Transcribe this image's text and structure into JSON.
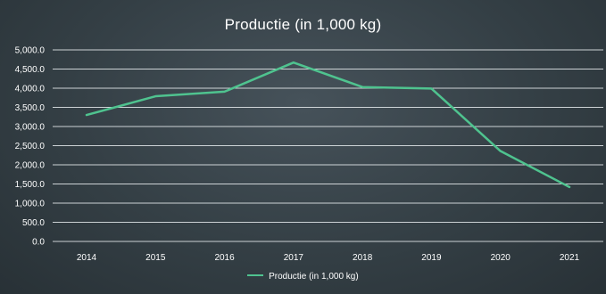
{
  "chart_data": {
    "type": "line",
    "title": "Productie (in 1,000 kg)",
    "categories": [
      "2014",
      "2015",
      "2016",
      "2017",
      "2018",
      "2019",
      "2020",
      "2021"
    ],
    "series": [
      {
        "name": "Productie (in 1,000 kg)",
        "values": [
          3300,
          3790,
          3910,
          4670,
          4030,
          3990,
          2360,
          1420
        ],
        "color": "#4fc38f"
      }
    ],
    "ylim": [
      0,
      5000
    ],
    "yticks": [
      0,
      500,
      1000,
      1500,
      2000,
      2500,
      3000,
      3500,
      4000,
      4500,
      5000
    ],
    "ytick_labels": [
      "0.0",
      "500.0",
      "1,000.0",
      "1,500.0",
      "2,000.0",
      "2,500.0",
      "3,000.0",
      "3,500.0",
      "4,000.0",
      "4,500.0",
      "5,000.0"
    ],
    "grid": true,
    "legend": "bottom",
    "background_color": "#36414a",
    "gridline_color": "#e8ecee"
  }
}
